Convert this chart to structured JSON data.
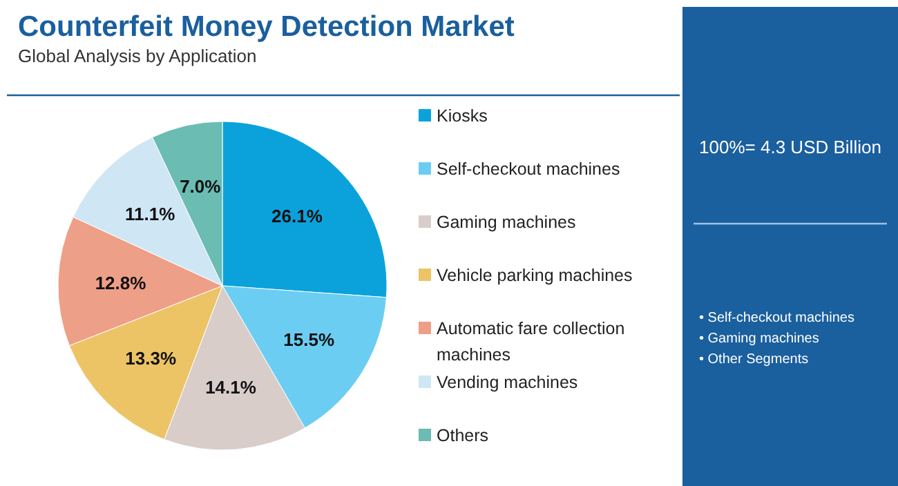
{
  "chart_data": {
    "type": "pie",
    "title": "Counterfeit Money Detection Market",
    "subtitle": "Global Analysis by Application",
    "categories": [
      "Kiosks",
      "Self-checkout machines",
      "Gaming machines",
      "Vehicle parking machines",
      "Automatic fare collection machines",
      "Vending machines",
      "Others"
    ],
    "values": [
      26.1,
      15.5,
      14.1,
      13.3,
      12.8,
      11.1,
      7.0
    ],
    "colors": [
      "#0ba2dc",
      "#6ccdf2",
      "#d8cdc9",
      "#ecc466",
      "#ee9f87",
      "#cfe6f5",
      "#6bbcb2"
    ],
    "value_labels": [
      "26.1%",
      "15.5%",
      "14.1%",
      "13.3%",
      "12.8%",
      "11.1%",
      "7.0%"
    ],
    "legend": "right",
    "annotations": [
      "100%= 4.3 USD Billion",
      "• Self-checkout machines",
      "• Gaming machines",
      "• Other Segments"
    ]
  }
}
